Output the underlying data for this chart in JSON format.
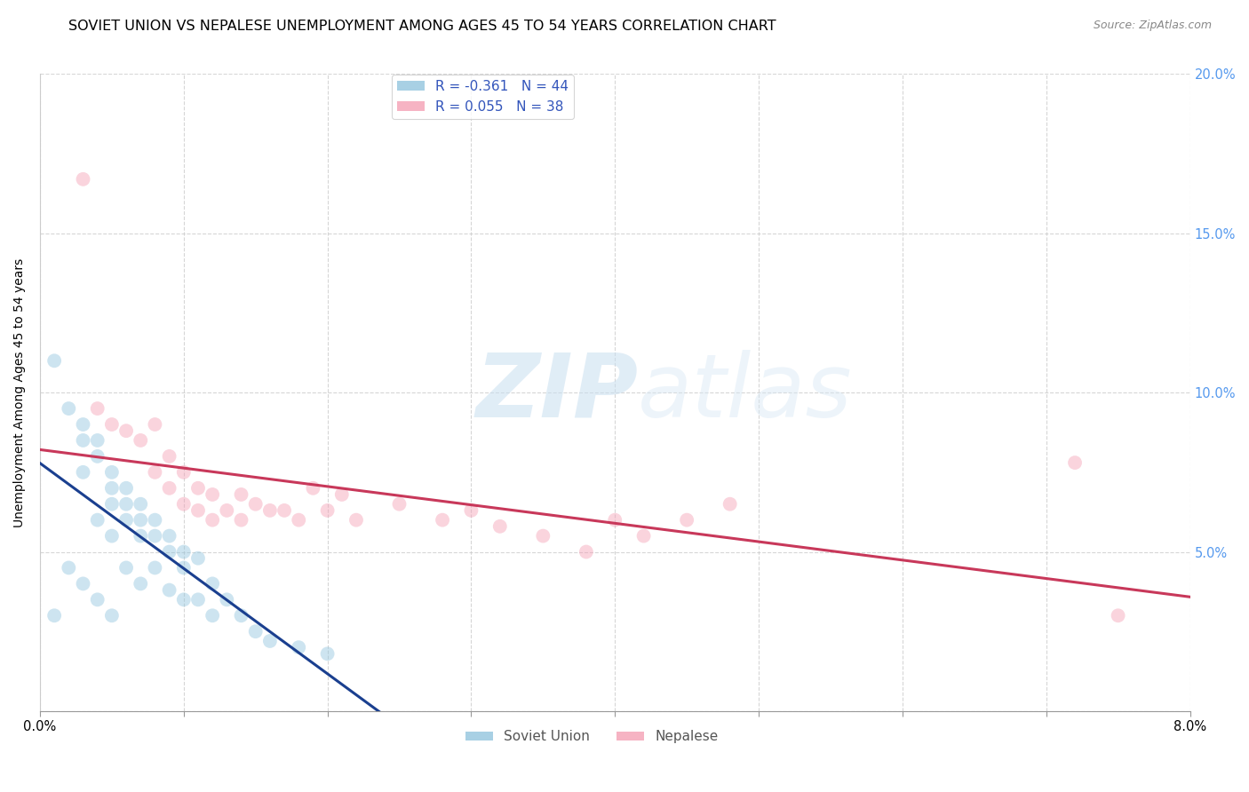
{
  "title": "SOVIET UNION VS NEPALESE UNEMPLOYMENT AMONG AGES 45 TO 54 YEARS CORRELATION CHART",
  "source": "Source: ZipAtlas.com",
  "ylabel": "Unemployment Among Ages 45 to 54 years",
  "xlim": [
    0.0,
    0.08
  ],
  "ylim": [
    0.0,
    0.2
  ],
  "xticks": [
    0.0,
    0.01,
    0.02,
    0.03,
    0.04,
    0.05,
    0.06,
    0.07,
    0.08
  ],
  "yticks": [
    0.0,
    0.05,
    0.1,
    0.15,
    0.2
  ],
  "xticklabels_bottom": [
    "0.0%",
    "",
    "",
    "",
    "",
    "",
    "",
    "",
    "8.0%"
  ],
  "yticklabels_left": [
    "",
    "",
    "",
    "",
    ""
  ],
  "yticklabels_right": [
    "",
    "5.0%",
    "10.0%",
    "15.0%",
    "20.0%"
  ],
  "soviet_color": "#92c5de",
  "nepalese_color": "#f4a0b5",
  "soviet_R": -0.361,
  "soviet_N": 44,
  "nepalese_R": 0.055,
  "nepalese_N": 38,
  "soviet_line_color": "#1a3f8f",
  "nepalese_line_color": "#c8385a",
  "legend_label_soviet": "Soviet Union",
  "legend_label_nepalese": "Nepalese",
  "soviet_x": [
    0.001,
    0.001,
    0.002,
    0.002,
    0.003,
    0.003,
    0.003,
    0.003,
    0.004,
    0.004,
    0.004,
    0.004,
    0.005,
    0.005,
    0.005,
    0.005,
    0.005,
    0.006,
    0.006,
    0.006,
    0.006,
    0.007,
    0.007,
    0.007,
    0.007,
    0.008,
    0.008,
    0.008,
    0.009,
    0.009,
    0.009,
    0.01,
    0.01,
    0.01,
    0.011,
    0.011,
    0.012,
    0.012,
    0.013,
    0.014,
    0.015,
    0.016,
    0.018,
    0.02
  ],
  "soviet_y": [
    0.11,
    0.03,
    0.095,
    0.045,
    0.09,
    0.085,
    0.075,
    0.04,
    0.085,
    0.08,
    0.06,
    0.035,
    0.075,
    0.07,
    0.065,
    0.055,
    0.03,
    0.07,
    0.065,
    0.06,
    0.045,
    0.065,
    0.06,
    0.055,
    0.04,
    0.06,
    0.055,
    0.045,
    0.055,
    0.05,
    0.038,
    0.05,
    0.045,
    0.035,
    0.048,
    0.035,
    0.04,
    0.03,
    0.035,
    0.03,
    0.025,
    0.022,
    0.02,
    0.018
  ],
  "nepalese_x": [
    0.003,
    0.004,
    0.005,
    0.006,
    0.007,
    0.008,
    0.008,
    0.009,
    0.009,
    0.01,
    0.01,
    0.011,
    0.011,
    0.012,
    0.012,
    0.013,
    0.014,
    0.014,
    0.015,
    0.016,
    0.017,
    0.018,
    0.019,
    0.02,
    0.021,
    0.022,
    0.025,
    0.028,
    0.03,
    0.032,
    0.035,
    0.038,
    0.04,
    0.042,
    0.045,
    0.048,
    0.072,
    0.075
  ],
  "nepalese_y": [
    0.167,
    0.095,
    0.09,
    0.088,
    0.085,
    0.09,
    0.075,
    0.08,
    0.07,
    0.075,
    0.065,
    0.07,
    0.063,
    0.068,
    0.06,
    0.063,
    0.068,
    0.06,
    0.065,
    0.063,
    0.063,
    0.06,
    0.07,
    0.063,
    0.068,
    0.06,
    0.065,
    0.06,
    0.063,
    0.058,
    0.055,
    0.05,
    0.06,
    0.055,
    0.06,
    0.065,
    0.078,
    0.03
  ],
  "watermark_zip": "ZIP",
  "watermark_atlas": "atlas",
  "title_fontsize": 11.5,
  "axis_label_fontsize": 10,
  "tick_fontsize": 10.5,
  "legend_fontsize": 11,
  "marker_size": 130,
  "marker_alpha": 0.45,
  "line_width": 2.2,
  "grid_color": "#cccccc",
  "grid_style": "--",
  "grid_alpha": 0.8,
  "right_ytick_color": "#5599ee",
  "background_color": "#ffffff"
}
